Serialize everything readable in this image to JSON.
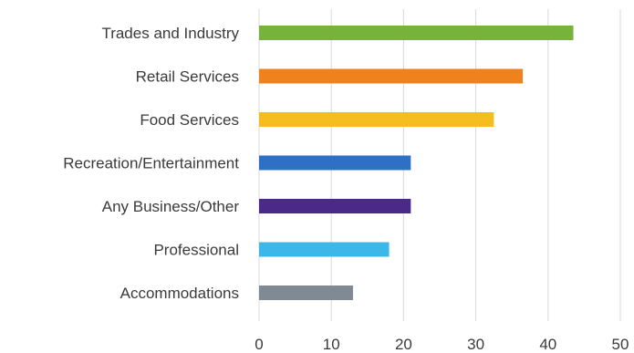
{
  "chart_data": {
    "type": "bar",
    "orientation": "horizontal",
    "categories": [
      "Trades and Industry",
      "Retail Services",
      "Food Services",
      "Recreation/Entertainment",
      "Any Business/Other",
      "Professional",
      "Accommodations"
    ],
    "values": [
      43.5,
      36.5,
      32.5,
      21,
      21,
      18,
      13
    ],
    "colors": [
      "#77b23a",
      "#f0821e",
      "#f5be1e",
      "#2e71c4",
      "#4a2a88",
      "#3cb8e8",
      "#7f8a94"
    ],
    "xlim": [
      0,
      50
    ],
    "xticks": [
      0,
      10,
      20,
      30,
      40,
      50
    ],
    "grid": "vertical",
    "title": "",
    "xlabel": "",
    "ylabel": ""
  }
}
